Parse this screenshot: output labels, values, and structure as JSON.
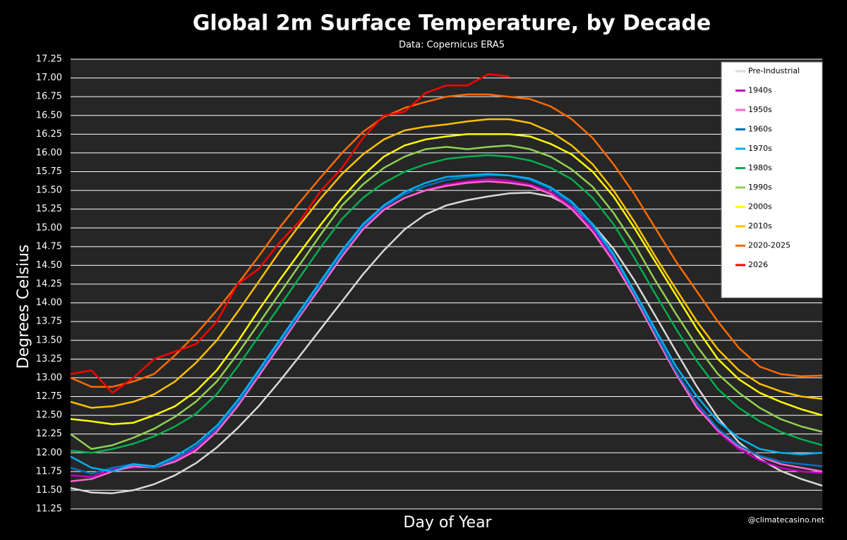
{
  "chart_data": {
    "type": "line",
    "title": "Global 2m Surface Temperature, by Decade",
    "subtitle": "Data: Copernicus ERA5",
    "x_label": "Day of Year",
    "y_label": "Degrees Celsius",
    "credit": "@climatecasino.net",
    "grid": true,
    "legend_position": "top-right",
    "categories": [
      null,
      null,
      null,
      null,
      null,
      null,
      null,
      null,
      null,
      null,
      null,
      null,
      null,
      null,
      null,
      null,
      null,
      null,
      null,
      null,
      null,
      null,
      null,
      null,
      null,
      null,
      null,
      null,
      null,
      null,
      null,
      null,
      null,
      null,
      null,
      null,
      null
    ],
    "ylim": [
      11.25,
      17.25
    ],
    "yticks": [
      11.25,
      {
        "value": 11.5,
        "label": "11.50"
      },
      11.75,
      {
        "value": 12,
        "label": "12.00"
      },
      12.25,
      {
        "value": 12.5,
        "label": "12.50"
      },
      12.75,
      {
        "value": 13,
        "label": "13.00"
      },
      13.25,
      {
        "value": 13.5,
        "label": "13.50"
      },
      13.75,
      {
        "value": 14,
        "label": "14.00"
      },
      14.25,
      {
        "value": 14.5,
        "label": "14.50"
      },
      14.75,
      {
        "value": 15,
        "label": "15.00"
      },
      15.25,
      {
        "value": 15.5,
        "label": "15.50"
      },
      15.75,
      {
        "value": 16,
        "label": "16.00"
      },
      16.25,
      {
        "value": 16.5,
        "label": "16.50"
      },
      16.75,
      {
        "value": 17,
        "label": "17.00"
      },
      17.25
    ],
    "series": [
      {
        "name": "Pre-Industrial",
        "color": "#d9d9d9",
        "values": [
          11.53,
          11.47,
          11.46,
          11.5,
          11.58,
          11.7,
          11.86,
          12.07,
          12.33,
          12.62,
          12.95,
          13.3,
          13.66,
          14.02,
          14.38,
          14.7,
          14.98,
          15.18,
          15.3,
          15.37,
          15.42,
          15.46,
          15.47,
          15.42,
          15.28,
          15.05,
          14.72,
          14.3,
          13.83,
          13.35,
          12.88,
          12.47,
          12.14,
          11.92,
          11.76,
          11.65,
          11.56
        ]
      },
      {
        "name": "1940s",
        "color": "#c000c0",
        "values": [
          11.7,
          11.68,
          11.78,
          11.8,
          11.82,
          11.9,
          12.05,
          12.3,
          12.65,
          13.05,
          13.45,
          13.85,
          14.25,
          14.65,
          15.0,
          15.25,
          15.4,
          15.5,
          15.58,
          15.62,
          15.65,
          15.63,
          15.58,
          15.48,
          15.28,
          14.98,
          14.58,
          14.1,
          13.58,
          13.05,
          12.62,
          12.28,
          12.05,
          11.9,
          11.8,
          11.75,
          11.73
        ]
      },
      {
        "name": "1950s",
        "color": "#ff66cc",
        "values": [
          11.62,
          11.65,
          11.75,
          11.82,
          11.8,
          11.88,
          12.03,
          12.28,
          12.62,
          13.02,
          13.42,
          13.83,
          14.22,
          14.62,
          14.98,
          15.24,
          15.4,
          15.5,
          15.56,
          15.6,
          15.62,
          15.6,
          15.56,
          15.45,
          15.25,
          14.95,
          14.55,
          14.08,
          13.56,
          13.05,
          12.6,
          12.3,
          12.08,
          11.95,
          11.85,
          11.8,
          11.75
        ]
      },
      {
        "name": "1960s",
        "color": "#0070c0",
        "values": [
          11.8,
          11.72,
          11.8,
          11.85,
          11.8,
          11.92,
          12.08,
          12.32,
          12.66,
          13.06,
          13.46,
          13.86,
          14.26,
          14.66,
          15.02,
          15.28,
          15.45,
          15.56,
          15.64,
          15.68,
          15.7,
          15.7,
          15.64,
          15.52,
          15.32,
          15.02,
          14.62,
          14.12,
          13.6,
          13.08,
          12.66,
          12.32,
          12.1,
          11.96,
          11.88,
          11.85,
          11.82
        ]
      },
      {
        "name": "1970s",
        "color": "#00b0f0",
        "values": [
          11.95,
          11.8,
          11.75,
          11.85,
          11.82,
          11.95,
          12.12,
          12.36,
          12.7,
          13.1,
          13.5,
          13.9,
          14.3,
          14.7,
          15.05,
          15.3,
          15.48,
          15.6,
          15.68,
          15.7,
          15.72,
          15.7,
          15.66,
          15.54,
          15.35,
          15.05,
          14.65,
          14.15,
          13.65,
          13.15,
          12.75,
          12.42,
          12.2,
          12.05,
          12.0,
          11.98,
          12.0
        ]
      },
      {
        "name": "1980s",
        "color": "#00b050",
        "values": [
          12.03,
          12.0,
          12.05,
          12.12,
          12.22,
          12.35,
          12.52,
          12.78,
          13.15,
          13.55,
          13.95,
          14.35,
          14.75,
          15.12,
          15.4,
          15.6,
          15.75,
          15.85,
          15.92,
          15.95,
          15.97,
          15.95,
          15.9,
          15.8,
          15.65,
          15.4,
          15.05,
          14.6,
          14.12,
          13.65,
          13.22,
          12.85,
          12.6,
          12.42,
          12.28,
          12.18,
          12.1
        ]
      },
      {
        "name": "1990s",
        "color": "#92d050",
        "values": [
          12.25,
          12.05,
          12.1,
          12.2,
          12.32,
          12.48,
          12.68,
          12.95,
          13.32,
          13.72,
          14.12,
          14.52,
          14.92,
          15.3,
          15.58,
          15.8,
          15.95,
          16.05,
          16.08,
          16.05,
          16.08,
          16.1,
          16.05,
          15.95,
          15.78,
          15.55,
          15.2,
          14.78,
          14.3,
          13.85,
          13.42,
          13.05,
          12.8,
          12.6,
          12.45,
          12.35,
          12.28
        ]
      },
      {
        "name": "2000s",
        "color": "#ffff00",
        "values": [
          12.45,
          12.42,
          12.38,
          12.4,
          12.5,
          12.62,
          12.82,
          13.1,
          13.48,
          13.9,
          14.3,
          14.68,
          15.05,
          15.4,
          15.7,
          15.95,
          16.1,
          16.18,
          16.22,
          16.25,
          16.25,
          16.25,
          16.22,
          16.12,
          15.98,
          15.75,
          15.42,
          15.0,
          14.55,
          14.1,
          13.65,
          13.25,
          12.98,
          12.8,
          12.68,
          12.58,
          12.5
        ]
      },
      {
        "name": "2010s",
        "color": "#ffc000",
        "values": [
          12.68,
          12.6,
          12.62,
          12.68,
          12.78,
          12.95,
          13.2,
          13.5,
          13.88,
          14.28,
          14.68,
          15.05,
          15.4,
          15.72,
          15.98,
          16.18,
          16.3,
          16.35,
          16.38,
          16.42,
          16.45,
          16.45,
          16.4,
          16.28,
          16.1,
          15.85,
          15.5,
          15.08,
          14.62,
          14.18,
          13.75,
          13.38,
          13.1,
          12.92,
          12.82,
          12.75,
          12.72
        ]
      },
      {
        "name": "2020-2025",
        "color": "#ff6a00",
        "values": [
          13.0,
          12.88,
          12.88,
          12.95,
          13.05,
          13.3,
          13.58,
          13.9,
          14.25,
          14.62,
          15.0,
          15.35,
          15.68,
          16.0,
          16.28,
          16.48,
          16.6,
          16.68,
          16.75,
          16.78,
          16.78,
          16.75,
          16.72,
          16.62,
          16.45,
          16.2,
          15.85,
          15.45,
          15.0,
          14.55,
          14.15,
          13.75,
          13.4,
          13.15,
          13.05,
          13.02,
          13.03
        ]
      },
      {
        "name": "2026",
        "color": "#ff0000",
        "values": [
          13.05,
          13.1,
          12.8,
          13.0,
          13.25,
          13.35,
          13.45,
          13.75,
          14.25,
          14.45,
          14.8,
          15.1,
          15.5,
          15.8,
          16.2,
          16.5,
          16.55,
          16.8,
          16.9,
          16.9,
          17.05,
          17.02,
          null,
          null,
          null,
          null,
          null,
          null,
          null,
          null,
          null,
          null,
          null,
          null,
          null,
          null,
          null
        ]
      }
    ]
  }
}
